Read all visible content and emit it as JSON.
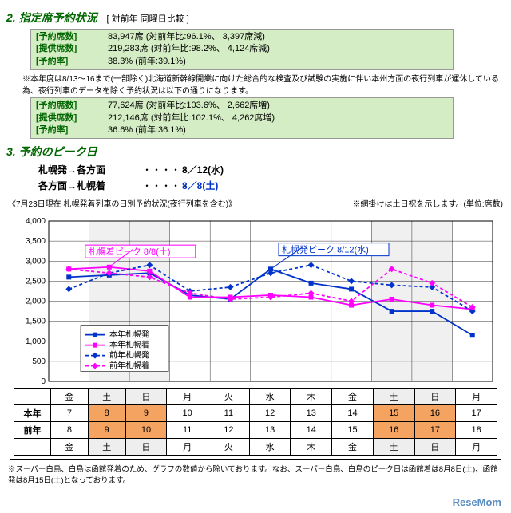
{
  "section2": {
    "title": "2. 指定席予約状況",
    "subtitle": "[ 対前年 同曜日比較 ]",
    "box1": {
      "r1": {
        "label": "[予約席数]",
        "val": "83,947席 (対前年比:96.1%、 3,397席減)"
      },
      "r2": {
        "label": "[提供席数]",
        "val": "219,283席 (対前年比:98.2%、 4,124席減)"
      },
      "r3": {
        "label": "[予約率]",
        "val": "38.3% (前年:39.1%)"
      }
    },
    "note": "※本年度は8/13～16まで(一部除く)北海道新幹線開業に向けた総合的な検査及び試験の実施に伴い本州方面の夜行列車が運休している為、夜行列車のデータを除く予約状況は以下の通りになります。",
    "box2": {
      "r1": {
        "label": "[予約席数]",
        "val": "77,624席 (対前年比:103.6%、 2,662席増)"
      },
      "r2": {
        "label": "[提供席数]",
        "val": "212,146席 (対前年比:102.1%、 4,262席増)"
      },
      "r3": {
        "label": "[予約率]",
        "val": "36.6% (前年:36.1%)"
      }
    }
  },
  "section3": {
    "title": "3. 予約のピーク日",
    "p1": {
      "dir": "札幌発→各方面",
      "dots": "・・・・・",
      "date": "8／12(水)"
    },
    "p2": {
      "dir": "各方面→札幌着",
      "dots": "・・・・・",
      "date": "8／8(土)"
    }
  },
  "chart": {
    "header_left": "《7月23日現在 札幌発着列車の日別予約状況(夜行列車を含む)》",
    "header_right": "※網掛けは土日祝を示します。(単位:席数)",
    "type": "line",
    "ylim": [
      0,
      4000
    ],
    "ytick_step": 500,
    "yticks": [
      "0",
      "500",
      "1,000",
      "1,500",
      "2,000",
      "2,500",
      "3,000",
      "3,500",
      "4,000"
    ],
    "x_count": 11,
    "callout1": {
      "text": "札幌着ピーク 8/8(土)",
      "color": "#ff00ff",
      "x": 1
    },
    "callout2": {
      "text": "札幌発ピーク 8/12(水)",
      "color": "#0033cc",
      "x": 5
    },
    "series": [
      {
        "name": "本年札幌発",
        "color": "#0033cc",
        "dash": "none",
        "marker": "square",
        "values": [
          2600,
          2650,
          2700,
          2150,
          2050,
          2800,
          2450,
          2300,
          1750,
          1750,
          1150
        ]
      },
      {
        "name": "本年札幌着",
        "color": "#ff00ff",
        "dash": "none",
        "marker": "square",
        "values": [
          2800,
          2850,
          2750,
          2100,
          2100,
          2150,
          2100,
          1900,
          2050,
          1900,
          1800
        ]
      },
      {
        "name": "前年札幌発",
        "color": "#0033cc",
        "dash": "4,3",
        "marker": "diamond",
        "values": [
          2300,
          2700,
          2900,
          2250,
          2350,
          2700,
          2900,
          2500,
          2400,
          2350,
          1750
        ]
      },
      {
        "name": "前年札幌着",
        "color": "#ff00ff",
        "dash": "4,3",
        "marker": "diamond",
        "values": [
          2800,
          2700,
          2600,
          2200,
          2050,
          2100,
          2200,
          2000,
          2800,
          2450,
          1850
        ]
      }
    ],
    "legend_labels": [
      "本年札幌発",
      "本年札幌着",
      "前年札幌発",
      "前年札幌着"
    ]
  },
  "table": {
    "dow_top": [
      "金",
      "土",
      "日",
      "月",
      "火",
      "水",
      "木",
      "金",
      "土",
      "日",
      "月"
    ],
    "honnen": [
      "7",
      "8",
      "9",
      "10",
      "11",
      "12",
      "13",
      "14",
      "15",
      "16",
      "17"
    ],
    "zennen": [
      "8",
      "9",
      "10",
      "11",
      "12",
      "13",
      "14",
      "15",
      "16",
      "17",
      "18"
    ],
    "dow_bot": [
      "金",
      "土",
      "日",
      "月",
      "火",
      "水",
      "木",
      "金",
      "土",
      "日",
      "月"
    ],
    "rh1": "本年",
    "rh2": "前年",
    "shade_honnen": [
      1,
      2,
      8,
      9
    ],
    "shade_zennen": [
      1,
      2,
      8,
      9
    ],
    "hatch_top": [
      1,
      2,
      8,
      9
    ],
    "hatch_bot": [
      1,
      2,
      8,
      9
    ]
  },
  "footnote": "※スーパー白鳥、白鳥は函館発着のため、グラフの数値から除いております。なお、スーパー白鳥、白鳥のピーク日は函館着は8月8日(土)、函館発は8月15日(土)となっております。",
  "logo": "ReseMom"
}
